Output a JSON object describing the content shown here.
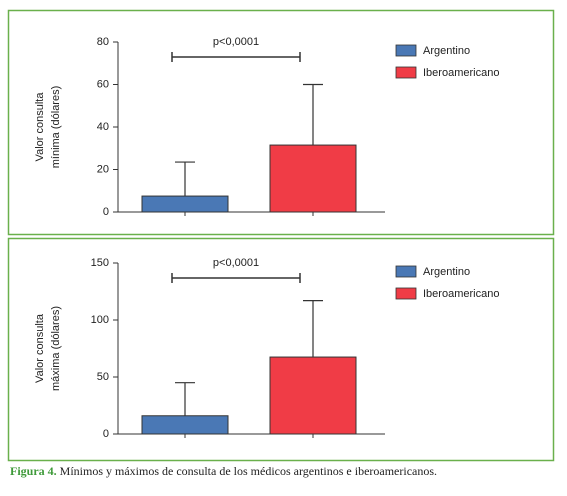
{
  "chart_data": [
    {
      "type": "bar",
      "annotation": "p<0,0001",
      "y_label": [
        "Valor consulta",
        "mínima (dólares)"
      ],
      "ylim": [
        0,
        80
      ],
      "yticks": [
        0,
        20,
        40,
        60,
        80
      ],
      "series": [
        {
          "name": "Argentino",
          "color": "#4a78b5",
          "values": [
            7.5
          ],
          "errors": [
            16
          ]
        },
        {
          "name": "Iberoamericano",
          "color": "#f03c46",
          "values": [
            31.5
          ],
          "errors": [
            28.5
          ]
        }
      ]
    },
    {
      "type": "bar",
      "annotation": "p<0,0001",
      "y_label": [
        "Valor consulta",
        "máxima (dólares)"
      ],
      "ylim": [
        0,
        150
      ],
      "yticks": [
        0,
        50,
        100,
        150
      ],
      "series": [
        {
          "name": "Argentino",
          "color": "#4a78b5",
          "values": [
            16
          ],
          "errors": [
            29
          ]
        },
        {
          "name": "Iberoamericano",
          "color": "#f03c46",
          "values": [
            67.5
          ],
          "errors": [
            49.5
          ]
        }
      ]
    }
  ],
  "caption": {
    "label": "Figura 4.",
    "text": "Mínimos y máximos de consulta de los médicos argentinos e iberoamericanos."
  }
}
